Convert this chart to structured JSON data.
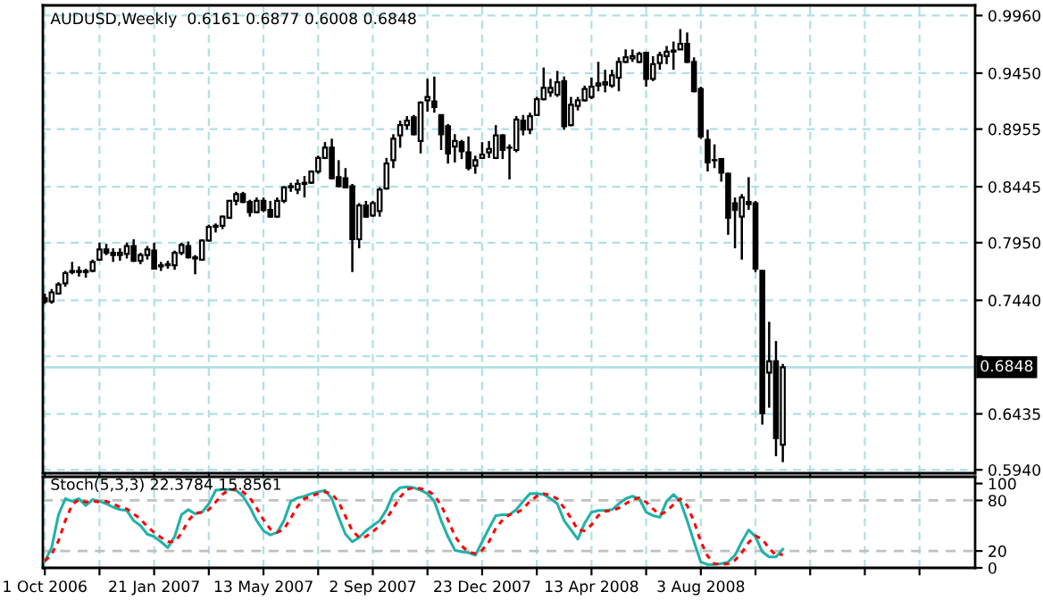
{
  "chart_data": [
    {
      "type": "candlestick",
      "title": "AUDUSD,Weekly  0.6161 0.6877 0.6008 0.6848",
      "x": [
        "2006-10-01",
        "2006-10-08",
        "2006-10-15",
        "2006-10-22",
        "2006-10-29",
        "2006-11-05",
        "2006-11-12",
        "2006-11-19",
        "2006-11-26",
        "2006-12-03",
        "2006-12-10",
        "2006-12-17",
        "2006-12-24",
        "2006-12-31",
        "2007-01-07",
        "2007-01-14",
        "2007-01-21",
        "2007-01-28",
        "2007-02-04",
        "2007-02-11",
        "2007-02-18",
        "2007-02-25",
        "2007-03-04",
        "2007-03-11",
        "2007-03-18",
        "2007-03-25",
        "2007-04-01",
        "2007-04-08",
        "2007-04-15",
        "2007-04-22",
        "2007-04-29",
        "2007-05-06",
        "2007-05-13",
        "2007-05-20",
        "2007-05-27",
        "2007-06-03",
        "2007-06-10",
        "2007-06-17",
        "2007-06-24",
        "2007-07-01",
        "2007-07-08",
        "2007-07-15",
        "2007-07-22",
        "2007-07-29",
        "2007-08-05",
        "2007-08-12",
        "2007-08-19",
        "2007-08-26",
        "2007-09-02",
        "2007-09-09",
        "2007-09-16",
        "2007-09-23",
        "2007-09-30",
        "2007-10-07",
        "2007-10-14",
        "2007-10-21",
        "2007-10-28",
        "2007-11-04",
        "2007-11-11",
        "2007-11-18",
        "2007-11-25",
        "2007-12-02",
        "2007-12-09",
        "2007-12-16",
        "2007-12-23",
        "2007-12-30",
        "2008-01-06",
        "2008-01-13",
        "2008-01-20",
        "2008-01-27",
        "2008-02-03",
        "2008-02-10",
        "2008-02-17",
        "2008-02-24",
        "2008-03-02",
        "2008-03-09",
        "2008-03-16",
        "2008-03-23",
        "2008-03-30",
        "2008-04-06",
        "2008-04-13",
        "2008-04-20",
        "2008-04-27",
        "2008-05-04",
        "2008-05-11",
        "2008-05-18",
        "2008-05-25",
        "2008-06-01",
        "2008-06-08",
        "2008-06-15",
        "2008-06-22",
        "2008-06-29",
        "2008-07-06",
        "2008-07-13",
        "2008-07-20",
        "2008-07-27",
        "2008-08-03",
        "2008-08-10",
        "2008-08-17",
        "2008-08-24",
        "2008-08-31",
        "2008-09-07",
        "2008-09-14",
        "2008-09-21",
        "2008-09-28",
        "2008-10-05",
        "2008-10-12",
        "2008-10-19",
        "2008-10-26"
      ],
      "ohlc": [
        [
          0.746,
          0.75,
          0.741,
          0.743
        ],
        [
          0.743,
          0.754,
          0.741,
          0.751
        ],
        [
          0.75,
          0.76,
          0.749,
          0.758
        ],
        [
          0.759,
          0.77,
          0.756,
          0.768
        ],
        [
          0.769,
          0.778,
          0.767,
          0.77
        ],
        [
          0.77,
          0.774,
          0.765,
          0.769
        ],
        [
          0.769,
          0.772,
          0.764,
          0.77
        ],
        [
          0.77,
          0.78,
          0.769,
          0.778
        ],
        [
          0.78,
          0.795,
          0.779,
          0.789
        ],
        [
          0.789,
          0.794,
          0.784,
          0.786
        ],
        [
          0.786,
          0.79,
          0.778,
          0.784
        ],
        [
          0.784,
          0.79,
          0.779,
          0.786
        ],
        [
          0.785,
          0.795,
          0.781,
          0.792
        ],
        [
          0.792,
          0.798,
          0.778,
          0.779
        ],
        [
          0.779,
          0.786,
          0.776,
          0.784
        ],
        [
          0.784,
          0.792,
          0.78,
          0.789
        ],
        [
          0.788,
          0.795,
          0.772,
          0.772
        ],
        [
          0.774,
          0.778,
          0.77,
          0.775
        ],
        [
          0.775,
          0.779,
          0.772,
          0.776
        ],
        [
          0.775,
          0.788,
          0.771,
          0.786
        ],
        [
          0.786,
          0.795,
          0.784,
          0.793
        ],
        [
          0.792,
          0.796,
          0.781,
          0.782
        ],
        [
          0.782,
          0.784,
          0.767,
          0.781
        ],
        [
          0.78,
          0.798,
          0.779,
          0.797
        ],
        [
          0.797,
          0.811,
          0.796,
          0.809
        ],
        [
          0.809,
          0.812,
          0.804,
          0.81
        ],
        [
          0.81,
          0.819,
          0.807,
          0.818
        ],
        [
          0.817,
          0.832,
          0.816,
          0.832
        ],
        [
          0.832,
          0.84,
          0.828,
          0.838
        ],
        [
          0.838,
          0.84,
          0.83,
          0.831
        ],
        [
          0.831,
          0.833,
          0.818,
          0.822
        ],
        [
          0.822,
          0.835,
          0.821,
          0.832
        ],
        [
          0.832,
          0.835,
          0.822,
          0.824
        ],
        [
          0.824,
          0.832,
          0.817,
          0.818
        ],
        [
          0.818,
          0.835,
          0.817,
          0.832
        ],
        [
          0.832,
          0.845,
          0.83,
          0.844
        ],
        [
          0.844,
          0.848,
          0.84,
          0.845
        ],
        [
          0.842,
          0.851,
          0.838,
          0.847
        ],
        [
          0.847,
          0.854,
          0.835,
          0.848
        ],
        [
          0.848,
          0.859,
          0.847,
          0.858
        ],
        [
          0.858,
          0.872,
          0.856,
          0.87
        ],
        [
          0.87,
          0.884,
          0.869,
          0.879
        ],
        [
          0.879,
          0.887,
          0.851,
          0.852
        ],
        [
          0.853,
          0.868,
          0.844,
          0.845
        ],
        [
          0.852,
          0.861,
          0.843,
          0.844
        ],
        [
          0.845,
          0.847,
          0.769,
          0.798
        ],
        [
          0.798,
          0.83,
          0.79,
          0.828
        ],
        [
          0.828,
          0.832,
          0.817,
          0.818
        ],
        [
          0.819,
          0.832,
          0.818,
          0.83
        ],
        [
          0.823,
          0.844,
          0.818,
          0.842
        ],
        [
          0.843,
          0.87,
          0.842,
          0.865
        ],
        [
          0.868,
          0.891,
          0.861,
          0.887
        ],
        [
          0.89,
          0.903,
          0.879,
          0.899
        ],
        [
          0.899,
          0.907,
          0.895,
          0.903
        ],
        [
          0.906,
          0.908,
          0.89,
          0.891
        ],
        [
          0.885,
          0.92,
          0.874,
          0.919
        ],
        [
          0.921,
          0.94,
          0.911,
          0.924
        ],
        [
          0.92,
          0.942,
          0.91,
          0.915
        ],
        [
          0.908,
          0.908,
          0.877,
          0.891
        ],
        [
          0.898,
          0.9,
          0.865,
          0.874
        ],
        [
          0.88,
          0.891,
          0.866,
          0.885
        ],
        [
          0.884,
          0.886,
          0.869,
          0.876
        ],
        [
          0.875,
          0.889,
          0.859,
          0.861
        ],
        [
          0.863,
          0.872,
          0.856,
          0.868
        ],
        [
          0.87,
          0.884,
          0.869,
          0.873
        ],
        [
          0.875,
          0.885,
          0.87,
          0.878
        ],
        [
          0.87,
          0.899,
          0.869,
          0.89
        ],
        [
          0.89,
          0.891,
          0.869,
          0.877
        ],
        [
          0.879,
          0.882,
          0.851,
          0.879
        ],
        [
          0.877,
          0.907,
          0.875,
          0.904
        ],
        [
          0.903,
          0.908,
          0.89,
          0.895
        ],
        [
          0.895,
          0.91,
          0.891,
          0.907
        ],
        [
          0.908,
          0.924,
          0.907,
          0.922
        ],
        [
          0.922,
          0.95,
          0.921,
          0.932
        ],
        [
          0.928,
          0.94,
          0.924,
          0.932
        ],
        [
          0.926,
          0.947,
          0.924,
          0.937
        ],
        [
          0.938,
          0.942,
          0.895,
          0.898
        ],
        [
          0.899,
          0.924,
          0.898,
          0.917
        ],
        [
          0.916,
          0.924,
          0.912,
          0.921
        ],
        [
          0.921,
          0.934,
          0.92,
          0.931
        ],
        [
          0.924,
          0.941,
          0.922,
          0.933
        ],
        [
          0.934,
          0.955,
          0.929,
          0.936
        ],
        [
          0.935,
          0.948,
          0.928,
          0.937
        ],
        [
          0.934,
          0.948,
          0.932,
          0.943
        ],
        [
          0.941,
          0.959,
          0.929,
          0.955
        ],
        [
          0.955,
          0.966,
          0.954,
          0.959
        ],
        [
          0.958,
          0.966,
          0.955,
          0.96
        ],
        [
          0.955,
          0.964,
          0.954,
          0.962
        ],
        [
          0.963,
          0.964,
          0.933,
          0.94
        ],
        [
          0.94,
          0.96,
          0.938,
          0.953
        ],
        [
          0.954,
          0.964,
          0.948,
          0.961
        ],
        [
          0.96,
          0.969,
          0.953,
          0.964
        ],
        [
          0.964,
          0.973,
          0.948,
          0.965
        ],
        [
          0.966,
          0.984,
          0.966,
          0.971
        ],
        [
          0.971,
          0.981,
          0.954,
          0.955
        ],
        [
          0.955,
          0.959,
          0.928,
          0.929
        ],
        [
          0.931,
          0.933,
          0.887,
          0.889
        ],
        [
          0.886,
          0.895,
          0.858,
          0.866
        ],
        [
          0.868,
          0.882,
          0.861,
          0.868
        ],
        [
          0.869,
          0.87,
          0.849,
          0.857
        ],
        [
          0.856,
          0.857,
          0.802,
          0.817
        ],
        [
          0.83,
          0.835,
          0.79,
          0.824
        ],
        [
          0.818,
          0.838,
          0.78,
          0.835
        ],
        [
          0.831,
          0.853,
          0.824,
          0.829
        ],
        [
          0.83,
          0.832,
          0.769,
          0.772
        ],
        [
          0.77,
          0.771,
          0.634,
          0.644
        ],
        [
          0.68,
          0.725,
          0.649,
          0.69
        ],
        [
          0.69,
          0.708,
          0.606,
          0.622
        ],
        [
          0.6161,
          0.6877,
          0.6008,
          0.6848
        ]
      ],
      "xlim": [
        "2006-09-29",
        "2009-05-11"
      ],
      "xticks": [
        {
          "value": "2006-10-01",
          "label": null
        },
        {
          "value": "2006-11-26",
          "label": null
        },
        {
          "value": "2007-01-21",
          "label": null
        },
        {
          "value": "2007-03-18",
          "label": null
        },
        {
          "value": "2007-05-13",
          "label": null
        },
        {
          "value": "2007-07-08",
          "label": null
        },
        {
          "value": "2007-09-02",
          "label": null
        },
        {
          "value": "2007-10-28",
          "label": null
        },
        {
          "value": "2007-12-23",
          "label": null
        },
        {
          "value": "2008-02-17",
          "label": null
        },
        {
          "value": "2008-04-13",
          "label": null
        },
        {
          "value": "2008-06-08",
          "label": null
        },
        {
          "value": "2008-08-03",
          "label": null
        },
        {
          "value": "2008-09-28",
          "label": null
        },
        {
          "value": "2008-11-23",
          "label": null
        },
        {
          "value": "2009-01-18",
          "label": null
        },
        {
          "value": "2009-03-15",
          "label": null
        }
      ],
      "ylim": [
        0.591,
        1.005
      ],
      "yticks": [
        {
          "value": 0.996,
          "label": "0.9960"
        },
        {
          "value": 0.945,
          "label": "0.9450"
        },
        0.8955,
        0.8445,
        {
          "value": 0.795,
          "label": "0.7950"
        },
        {
          "value": 0.744,
          "label": "0.7440"
        },
        {
          "value": 0.6945,
          "label": null
        },
        0.6435,
        {
          "value": 0.594,
          "label": "0.5940"
        }
      ],
      "grid": true,
      "tick_labels": "y",
      "ref_lines": [
        {
          "axis": "y",
          "value": 0.6848,
          "label": "0.6848",
          "color": "#b0e0e6"
        }
      ]
    },
    {
      "type": "line",
      "title": "Stoch(5,3,3) 22.3784 15.8561",
      "x": [
        "2006-10-01",
        "2006-10-08",
        "2006-10-15",
        "2006-10-22",
        "2006-10-29",
        "2006-11-05",
        "2006-11-12",
        "2006-11-19",
        "2006-11-26",
        "2006-12-03",
        "2006-12-10",
        "2006-12-17",
        "2006-12-24",
        "2006-12-31",
        "2007-01-07",
        "2007-01-14",
        "2007-01-21",
        "2007-01-28",
        "2007-02-04",
        "2007-02-11",
        "2007-02-18",
        "2007-02-25",
        "2007-03-04",
        "2007-03-11",
        "2007-03-18",
        "2007-03-25",
        "2007-04-01",
        "2007-04-08",
        "2007-04-15",
        "2007-04-22",
        "2007-04-29",
        "2007-05-06",
        "2007-05-13",
        "2007-05-20",
        "2007-05-27",
        "2007-06-03",
        "2007-06-10",
        "2007-06-17",
        "2007-06-24",
        "2007-07-01",
        "2007-07-08",
        "2007-07-15",
        "2007-07-22",
        "2007-07-29",
        "2007-08-05",
        "2007-08-12",
        "2007-08-19",
        "2007-08-26",
        "2007-09-02",
        "2007-09-09",
        "2007-09-16",
        "2007-09-23",
        "2007-09-30",
        "2007-10-07",
        "2007-10-14",
        "2007-10-21",
        "2007-10-28",
        "2007-11-04",
        "2007-11-11",
        "2007-11-18",
        "2007-11-25",
        "2007-12-02",
        "2007-12-09",
        "2007-12-16",
        "2007-12-23",
        "2007-12-30",
        "2008-01-06",
        "2008-01-13",
        "2008-01-20",
        "2008-01-27",
        "2008-02-03",
        "2008-02-10",
        "2008-02-17",
        "2008-02-24",
        "2008-03-02",
        "2008-03-09",
        "2008-03-16",
        "2008-03-23",
        "2008-03-30",
        "2008-04-06",
        "2008-04-13",
        "2008-04-20",
        "2008-04-27",
        "2008-05-04",
        "2008-05-11",
        "2008-05-18",
        "2008-05-25",
        "2008-06-01",
        "2008-06-08",
        "2008-06-15",
        "2008-06-22",
        "2008-06-29",
        "2008-07-06",
        "2008-07-13",
        "2008-07-20",
        "2008-07-27",
        "2008-08-03",
        "2008-08-10",
        "2008-08-17",
        "2008-08-24",
        "2008-08-31",
        "2008-09-07",
        "2008-09-14",
        "2008-09-21",
        "2008-09-28",
        "2008-10-05",
        "2008-10-12",
        "2008-10-19",
        "2008-10-26"
      ],
      "series": [
        {
          "color": "#20b2aa",
          "line_style": "solid",
          "values": [
            8,
            24,
            63,
            82,
            79,
            82,
            74,
            81,
            79,
            76,
            72,
            69,
            68,
            56,
            50,
            40,
            37,
            31,
            24,
            37,
            63,
            69,
            64,
            66,
            76,
            92,
            93,
            93,
            92,
            85,
            72,
            56,
            44,
            39,
            42,
            56,
            79,
            83,
            85,
            88,
            90,
            92,
            82,
            60,
            40,
            31,
            36,
            44,
            50,
            56,
            69,
            88,
            95,
            96,
            95,
            92,
            88,
            79,
            56,
            37,
            21,
            19,
            18,
            15,
            31,
            47,
            62,
            63,
            63,
            69,
            79,
            88,
            88,
            87,
            82,
            76,
            56,
            45,
            34,
            53,
            66,
            68,
            68,
            69,
            76,
            82,
            85,
            82,
            66,
            62,
            60,
            79,
            87,
            79,
            56,
            31,
            7,
            4,
            4,
            5,
            7,
            15,
            31,
            45,
            37,
            19,
            13,
            13,
            22
          ]
        },
        {
          "color": "#ff0000",
          "line_style": "dotted",
          "values": [
            8,
            16,
            32,
            56,
            75,
            81,
            78,
            79,
            78,
            79,
            76,
            72,
            70,
            64,
            58,
            49,
            42,
            36,
            31,
            31,
            41,
            56,
            65,
            66,
            69,
            78,
            87,
            93,
            93,
            90,
            83,
            71,
            57,
            46,
            42,
            46,
            59,
            73,
            82,
            85,
            88,
            90,
            88,
            78,
            61,
            44,
            36,
            37,
            43,
            50,
            58,
            71,
            84,
            93,
            95,
            94,
            92,
            86,
            74,
            57,
            38,
            26,
            19,
            17,
            21,
            31,
            47,
            57,
            63,
            65,
            70,
            79,
            85,
            88,
            86,
            82,
            71,
            59,
            45,
            44,
            51,
            62,
            67,
            68,
            71,
            76,
            81,
            83,
            78,
            70,
            63,
            67,
            75,
            82,
            74,
            55,
            31,
            14,
            5,
            4,
            5,
            9,
            18,
            30,
            38,
            34,
            23,
            15,
            16
          ]
        }
      ],
      "xlim": [
        "2006-09-29",
        "2009-05-11"
      ],
      "xticks": [
        {
          "value": "2006-10-01",
          "label": "1 Oct 2006"
        },
        {
          "value": "2006-11-26",
          "label": null
        },
        {
          "value": "2007-01-21",
          "label": "21 Jan 2007"
        },
        {
          "value": "2007-03-18",
          "label": null
        },
        {
          "value": "2007-05-13",
          "label": "13 May 2007"
        },
        {
          "value": "2007-07-08",
          "label": null
        },
        {
          "value": "2007-09-02",
          "label": "2 Sep 2007"
        },
        {
          "value": "2007-10-28",
          "label": null
        },
        {
          "value": "2007-12-23",
          "label": "23 Dec 2007"
        },
        {
          "value": "2008-02-17",
          "label": null
        },
        {
          "value": "2008-04-13",
          "label": "13 Apr 2008"
        },
        {
          "value": "2008-06-08",
          "label": null
        },
        {
          "value": "2008-08-03",
          "label": "3 Aug 2008"
        },
        {
          "value": "2008-09-28",
          "label": null
        },
        {
          "value": "2008-11-23",
          "label": null
        },
        {
          "value": "2009-01-18",
          "label": null
        },
        {
          "value": "2009-03-15",
          "label": null
        }
      ],
      "ylim": [
        0,
        108
      ],
      "yticks": [
        100,
        80,
        20,
        0
      ],
      "grid": "x",
      "ref_lines": [
        {
          "axis": "y",
          "value": 80,
          "color": "#c0c0c0",
          "line_style": "dashed"
        },
        {
          "axis": "y",
          "value": 20,
          "color": "#c0c0c0",
          "line_style": "dashed"
        }
      ]
    }
  ]
}
